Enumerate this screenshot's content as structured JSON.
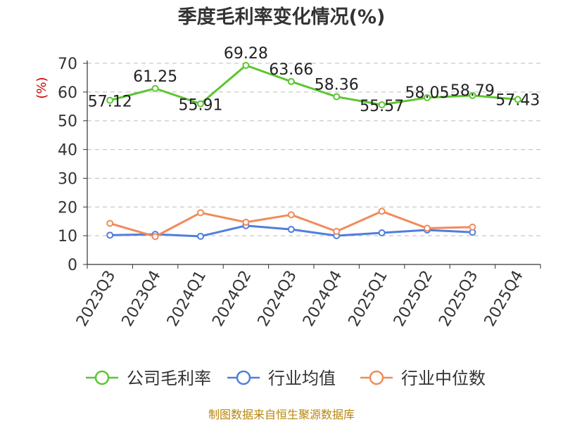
{
  "chart_data": {
    "type": "line",
    "title": "季度毛利率变化情况(%)",
    "ylabel": "(%)",
    "ylim": [
      0,
      70
    ],
    "yticks": [
      0,
      10,
      20,
      30,
      40,
      50,
      60,
      70
    ],
    "grid": true,
    "legend_position": "bottom",
    "categories": [
      "2023Q3",
      "2023Q4",
      "2024Q1",
      "2024Q2",
      "2024Q3",
      "2024Q4",
      "2025Q1",
      "2025Q2",
      "2025Q3",
      "2025Q4"
    ],
    "series": [
      {
        "name": "公司毛利率",
        "color": "#5cc631",
        "values": [
          57.12,
          61.25,
          55.91,
          69.28,
          63.66,
          58.36,
          55.57,
          58.05,
          58.79,
          57.43
        ],
        "labels": [
          "57.12",
          "61.25",
          "55.91",
          "69.28",
          "63.66",
          "58.36",
          "55.57",
          "58.05",
          "58.79",
          "57.43"
        ]
      },
      {
        "name": "行业均值",
        "color": "#4f7fdd",
        "values": [
          10.2,
          10.5,
          9.8,
          13.5,
          12.2,
          10.0,
          11.0,
          12.0,
          11.2,
          null
        ]
      },
      {
        "name": "行业中位数",
        "color": "#f28a5a",
        "values": [
          14.3,
          9.7,
          18.0,
          14.7,
          17.3,
          11.5,
          18.5,
          12.6,
          13.0,
          null
        ]
      }
    ],
    "source": "制图数据来自恒生聚源数据库"
  }
}
